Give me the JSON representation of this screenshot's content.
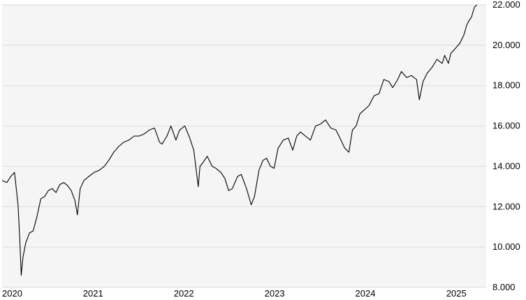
{
  "chart_data": {
    "type": "line",
    "title": "",
    "xlabel": "",
    "ylabel": "",
    "x_ticks": [
      "2020",
      "2021",
      "2022",
      "2023",
      "2024",
      "2025"
    ],
    "y_ticks": [
      "8.000",
      "10.000",
      "12.000",
      "14.000",
      "16.000",
      "18.000",
      "20.000",
      "22.000"
    ],
    "xlim": [
      "2020-01-01",
      "2025-05-01"
    ],
    "ylim": [
      8000,
      22000
    ],
    "grid": true,
    "legend": "none",
    "colors": {
      "plot_background": "#f5f5f5",
      "grid": "#dcdcdc",
      "line": "#000000"
    },
    "series": [
      {
        "x": [
          "2020-01-01",
          "2020-01-20",
          "2020-02-05",
          "2020-02-20",
          "2020-03-05",
          "2020-03-12",
          "2020-03-18",
          "2020-03-25",
          "2020-04-05",
          "2020-04-20",
          "2020-05-05",
          "2020-05-20",
          "2020-06-05",
          "2020-06-20",
          "2020-07-05",
          "2020-07-20",
          "2020-08-05",
          "2020-08-20",
          "2020-09-05",
          "2020-09-20",
          "2020-10-05",
          "2020-10-20",
          "2020-10-30",
          "2020-11-10",
          "2020-11-25",
          "2020-12-15",
          "2021-01-05",
          "2021-01-25",
          "2021-02-15",
          "2021-03-05",
          "2021-03-25",
          "2021-04-15",
          "2021-05-05",
          "2021-05-25",
          "2021-06-15",
          "2021-07-05",
          "2021-07-25",
          "2021-08-15",
          "2021-09-05",
          "2021-09-25",
          "2021-10-05",
          "2021-10-25",
          "2021-11-10",
          "2021-11-30",
          "2021-12-15",
          "2022-01-05",
          "2022-01-25",
          "2022-02-10",
          "2022-02-28",
          "2022-03-07",
          "2022-03-20",
          "2022-04-05",
          "2022-04-25",
          "2022-05-10",
          "2022-05-30",
          "2022-06-15",
          "2022-06-30",
          "2022-07-15",
          "2022-08-05",
          "2022-08-20",
          "2022-09-10",
          "2022-09-29",
          "2022-10-12",
          "2022-10-30",
          "2022-11-15",
          "2022-11-30",
          "2022-12-15",
          "2022-12-30",
          "2023-01-15",
          "2023-02-05",
          "2023-02-25",
          "2023-03-15",
          "2023-03-31",
          "2023-04-15",
          "2023-05-05",
          "2023-05-25",
          "2023-06-15",
          "2023-07-05",
          "2023-07-25",
          "2023-08-15",
          "2023-09-05",
          "2023-09-25",
          "2023-10-10",
          "2023-10-27",
          "2023-11-10",
          "2023-11-25",
          "2023-12-10",
          "2023-12-28",
          "2024-01-15",
          "2024-02-05",
          "2024-02-25",
          "2024-03-15",
          "2024-04-05",
          "2024-04-20",
          "2024-05-10",
          "2024-05-25",
          "2024-06-15",
          "2024-07-05",
          "2024-07-25",
          "2024-08-05",
          "2024-08-20",
          "2024-09-05",
          "2024-09-25",
          "2024-10-15",
          "2024-11-05",
          "2024-11-15",
          "2024-11-30",
          "2024-12-10",
          "2024-12-25",
          "2025-01-15",
          "2025-01-31",
          "2025-02-12",
          "2025-02-20",
          "2025-03-03",
          "2025-03-15",
          "2025-03-25"
        ],
        "values": [
          13300,
          13200,
          13500,
          13700,
          12100,
          10400,
          8600,
          9500,
          10200,
          10700,
          10800,
          11500,
          12400,
          12500,
          12800,
          12900,
          12700,
          13100,
          13200,
          13050,
          12800,
          12300,
          11600,
          12900,
          13300,
          13500,
          13700,
          13800,
          14000,
          14300,
          14700,
          15000,
          15200,
          15300,
          15500,
          15500,
          15600,
          15800,
          15900,
          15200,
          15100,
          15500,
          16000,
          15300,
          15800,
          16000,
          15400,
          14800,
          13000,
          14000,
          14200,
          14500,
          14000,
          13900,
          13700,
          13400,
          12800,
          12900,
          13500,
          13600,
          12900,
          12100,
          12500,
          13800,
          14300,
          14400,
          14000,
          13900,
          14900,
          15300,
          15400,
          14800,
          15500,
          15700,
          15500,
          15300,
          16000,
          16100,
          16300,
          15900,
          15800,
          15300,
          14900,
          14700,
          15800,
          16000,
          16600,
          16800,
          17000,
          17500,
          17600,
          18300,
          18200,
          17900,
          18300,
          18700,
          18400,
          18500,
          18300,
          17300,
          18200,
          18600,
          18900,
          19300,
          19100,
          19500,
          19100,
          19600,
          19800,
          20100,
          20500,
          21000,
          21200,
          21400,
          21900,
          22000
        ]
      }
    ]
  }
}
